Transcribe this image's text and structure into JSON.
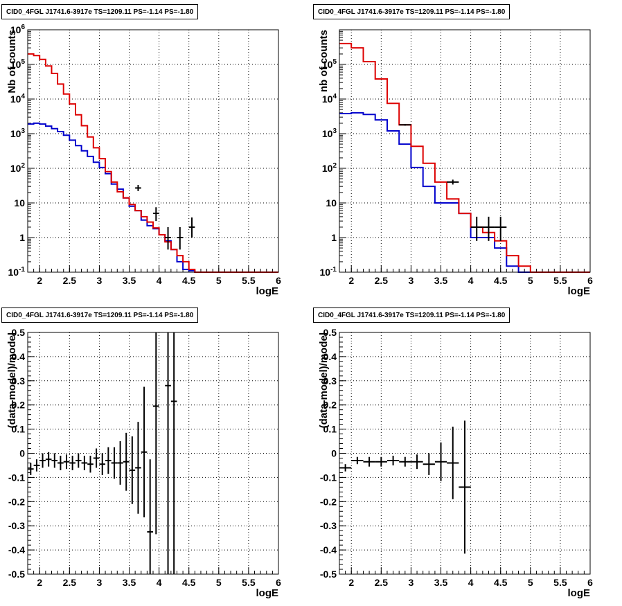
{
  "chart_data": [
    {
      "type": "line",
      "title": "CID0_4FGL J1741.6-3917e TS=1209.11 PS=-1.14 PS=-1.80",
      "xlabel": "logE",
      "ylabel": "Nb of counts",
      "xlim": [
        1.8,
        6.0
      ],
      "ylim": [
        0.1,
        1000000
      ],
      "yscale": "log",
      "grid": true,
      "xticks": [
        "2",
        "2.5",
        "3",
        "3.5",
        "4",
        "4.5",
        "5",
        "5.5",
        "6"
      ],
      "yticks": [
        "10^-1",
        "1",
        "10",
        "10^2",
        "10^3",
        "10^4",
        "10^5",
        "10^6"
      ],
      "bin_edges": [
        1.8,
        1.9,
        2.0,
        2.1,
        2.2,
        2.3,
        2.4,
        2.5,
        2.6,
        2.7,
        2.8,
        2.9,
        3.0,
        3.1,
        3.2,
        3.3,
        3.4,
        3.5,
        3.6,
        3.7,
        3.8,
        3.9,
        4.0,
        4.1,
        4.2,
        4.3,
        4.4,
        4.5,
        4.6,
        4.7,
        4.8,
        4.9,
        5.0,
        5.1,
        5.2,
        5.3,
        5.4,
        5.5,
        5.6,
        5.7,
        5.8,
        5.9,
        6.0
      ],
      "series": [
        {
          "color": "#0000cc",
          "values": [
            1900,
            2000,
            1900,
            1650,
            1400,
            1150,
            900,
            650,
            450,
            320,
            220,
            150,
            105,
            70,
            35,
            25,
            14,
            8,
            6,
            3.2,
            2.2,
            1.8,
            1.2,
            0.8,
            0.45,
            0.2,
            0.12,
            0.11,
            0.1,
            0.1,
            0.1,
            0.1,
            0.1,
            0.1,
            0.1,
            0.1,
            0.1,
            0.1,
            0.1,
            0.1,
            0.1,
            0.1
          ]
        },
        {
          "color": "#dd0000",
          "values": [
            200000,
            180000,
            140000,
            90000,
            55000,
            27000,
            14000,
            7200,
            3500,
            1700,
            800,
            390,
            190,
            80,
            40,
            21,
            14,
            9,
            6,
            4,
            2.8,
            1.9,
            1.2,
            0.75,
            0.45,
            0.3,
            0.2,
            0.12,
            0.1,
            0.1,
            0.1,
            0.1,
            0.1,
            0.1,
            0.1,
            0.1,
            0.1,
            0.1,
            0.1,
            0.1,
            0.1,
            0.1
          ]
        }
      ],
      "data_points": [
        {
          "x": 3.65,
          "y": 27,
          "lo": 22,
          "hi": 33
        },
        {
          "x": 3.95,
          "y": 5,
          "lo": 3,
          "hi": 7.5
        },
        {
          "x": 4.15,
          "y": 1,
          "lo": 0.45,
          "hi": 2
        },
        {
          "x": 4.35,
          "y": 1,
          "lo": 0.45,
          "hi": 2
        },
        {
          "x": 4.55,
          "y": 2,
          "lo": 1,
          "hi": 3.8
        }
      ]
    },
    {
      "type": "line",
      "title": "CID0_4FGL J1741.6-3917e TS=1209.11 PS=-1.14 PS=-1.80",
      "xlabel": "logE",
      "ylabel": "nb of counts",
      "xlim": [
        1.8,
        6.0
      ],
      "ylim": [
        0.1,
        1000000
      ],
      "yscale": "log",
      "grid": true,
      "xticks": [
        "2",
        "2.5",
        "3",
        "3.5",
        "4",
        "4.5",
        "5",
        "5.5",
        "6"
      ],
      "yticks": [
        "10^-1",
        "1",
        "10",
        "10^2",
        "10^3",
        "10^4",
        "10^5"
      ],
      "bin_edges": [
        1.8,
        2.0,
        2.2,
        2.4,
        2.6,
        2.8,
        3.0,
        3.2,
        3.4,
        3.6,
        3.8,
        4.0,
        4.2,
        4.4,
        4.6,
        4.8,
        5.0,
        5.2,
        5.4,
        5.6,
        5.8,
        6.0
      ],
      "series": [
        {
          "color": "#0000cc",
          "values": [
            3800,
            4000,
            3600,
            2500,
            1200,
            500,
            105,
            30,
            10,
            10,
            5,
            1,
            1,
            0.5,
            0.15,
            0.1,
            0.1,
            0.1,
            0.1,
            0.1,
            0.1
          ]
        },
        {
          "color": "#dd0000",
          "values": [
            400000,
            300000,
            120000,
            38000,
            7500,
            1800,
            430,
            140,
            40,
            13,
            5,
            2,
            1.4,
            0.8,
            0.3,
            0.15,
            0.1,
            0.1,
            0.1,
            0.1,
            0.1
          ]
        }
      ],
      "data_points": [
        {
          "x": 2.9,
          "y": 1800,
          "lo": 1700,
          "hi": 1900
        },
        {
          "x": 3.7,
          "y": 40,
          "lo": 34,
          "hi": 47
        },
        {
          "x": 4.1,
          "y": 2,
          "lo": 0.8,
          "hi": 4
        },
        {
          "x": 4.3,
          "y": 2,
          "lo": 0.8,
          "hi": 4
        },
        {
          "x": 4.5,
          "y": 2,
          "lo": 0.8,
          "hi": 4
        }
      ]
    },
    {
      "type": "scatter",
      "title": "CID0_4FGL J1741.6-3917e TS=1209.11 PS=-1.14 PS=-1.80",
      "xlabel": "logE",
      "ylabel": "(data-model)/model",
      "xlim": [
        1.8,
        6.0
      ],
      "ylim": [
        -0.5,
        0.5
      ],
      "grid": true,
      "xticks": [
        "2",
        "2.5",
        "3",
        "3.5",
        "4",
        "4.5",
        "5",
        "5.5",
        "6"
      ],
      "yticks": [
        "-0.5",
        "-0.4",
        "-0.3",
        "-0.2",
        "-0.1",
        "0",
        "0.1",
        "0.2",
        "0.3",
        "0.4",
        "0.5"
      ],
      "bin_width": 0.1,
      "points": [
        {
          "x": 1.85,
          "y": -0.065,
          "err": 0.025
        },
        {
          "x": 1.95,
          "y": -0.05,
          "err": 0.025
        },
        {
          "x": 2.05,
          "y": -0.03,
          "err": 0.03
        },
        {
          "x": 2.15,
          "y": -0.025,
          "err": 0.03
        },
        {
          "x": 2.25,
          "y": -0.03,
          "err": 0.03
        },
        {
          "x": 2.35,
          "y": -0.04,
          "err": 0.03
        },
        {
          "x": 2.45,
          "y": -0.035,
          "err": 0.03
        },
        {
          "x": 2.55,
          "y": -0.04,
          "err": 0.03
        },
        {
          "x": 2.65,
          "y": -0.03,
          "err": 0.03
        },
        {
          "x": 2.75,
          "y": -0.04,
          "err": 0.03
        },
        {
          "x": 2.85,
          "y": -0.045,
          "err": 0.035
        },
        {
          "x": 2.95,
          "y": -0.02,
          "err": 0.04
        },
        {
          "x": 3.05,
          "y": -0.045,
          "err": 0.045
        },
        {
          "x": 3.15,
          "y": -0.03,
          "err": 0.055
        },
        {
          "x": 3.25,
          "y": -0.04,
          "err": 0.065
        },
        {
          "x": 3.35,
          "y": -0.04,
          "err": 0.09
        },
        {
          "x": 3.45,
          "y": -0.035,
          "err": 0.12
        },
        {
          "x": 3.55,
          "y": -0.07,
          "err": 0.14
        },
        {
          "x": 3.65,
          "y": -0.06,
          "err": 0.19
        },
        {
          "x": 3.75,
          "y": 0.005,
          "err": 0.27
        },
        {
          "x": 3.85,
          "y": -0.325,
          "err": 0.3
        },
        {
          "x": 3.95,
          "y": 0.195,
          "err": 0.53
        },
        {
          "x": 4.15,
          "y": 0.28,
          "err": 1.0
        },
        {
          "x": 4.25,
          "y": 0.215,
          "err": 1.0
        }
      ]
    },
    {
      "type": "scatter",
      "title": "CID0_4FGL J1741.6-3917e TS=1209.11 PS=-1.14 PS=-1.80",
      "xlabel": "logE",
      "ylabel": "(data-model)/model",
      "xlim": [
        1.8,
        6.0
      ],
      "ylim": [
        -0.5,
        0.5
      ],
      "grid": true,
      "xticks": [
        "2",
        "2.5",
        "3",
        "3.5",
        "4",
        "4.5",
        "5",
        "5.5",
        "6"
      ],
      "yticks": [
        "-0.5",
        "-0.4",
        "-0.3",
        "-0.2",
        "-0.1",
        "0",
        "0.1",
        "0.2",
        "0.3",
        "0.4",
        "0.5"
      ],
      "bin_width": 0.2,
      "points": [
        {
          "x": 1.9,
          "y": -0.06,
          "err": 0.015
        },
        {
          "x": 2.1,
          "y": -0.03,
          "err": 0.015
        },
        {
          "x": 2.3,
          "y": -0.035,
          "err": 0.02
        },
        {
          "x": 2.5,
          "y": -0.035,
          "err": 0.02
        },
        {
          "x": 2.7,
          "y": -0.03,
          "err": 0.02
        },
        {
          "x": 2.9,
          "y": -0.035,
          "err": 0.02
        },
        {
          "x": 3.1,
          "y": -0.035,
          "err": 0.03
        },
        {
          "x": 3.3,
          "y": -0.045,
          "err": 0.045
        },
        {
          "x": 3.5,
          "y": -0.035,
          "err": 0.08
        },
        {
          "x": 3.7,
          "y": -0.04,
          "err": 0.15
        },
        {
          "x": 3.9,
          "y": -0.14,
          "err": 0.275
        }
      ]
    }
  ]
}
